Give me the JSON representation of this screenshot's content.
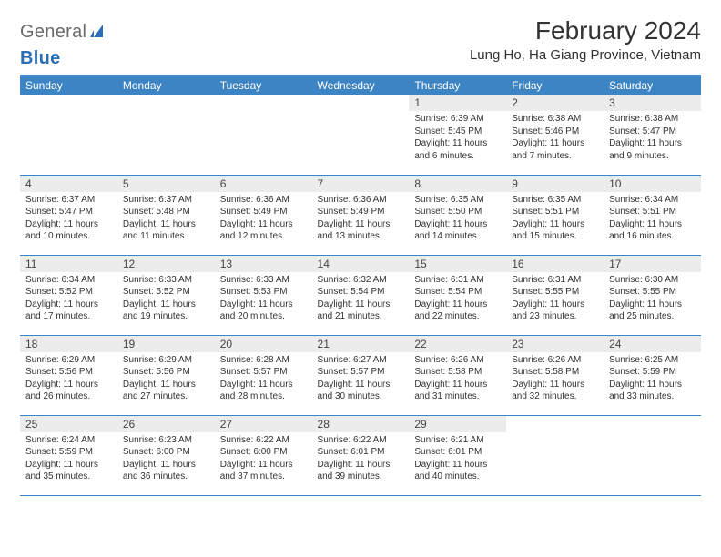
{
  "logo": {
    "general": "General",
    "blue": "Blue"
  },
  "title": "February 2024",
  "location": "Lung Ho, Ha Giang Province, Vietnam",
  "colors": {
    "accent": "#3d84c4",
    "header_bg": "#ececec",
    "text": "#333333",
    "logo_gray": "#6a6a6a",
    "logo_blue": "#2d6fb6"
  },
  "weekdays": [
    "Sunday",
    "Monday",
    "Tuesday",
    "Wednesday",
    "Thursday",
    "Friday",
    "Saturday"
  ],
  "weeks": [
    [
      {
        "empty": true
      },
      {
        "empty": true
      },
      {
        "empty": true
      },
      {
        "empty": true
      },
      {
        "day": "1",
        "sunrise": "Sunrise: 6:39 AM",
        "sunset": "Sunset: 5:45 PM",
        "daylight": "Daylight: 11 hours and 6 minutes."
      },
      {
        "day": "2",
        "sunrise": "Sunrise: 6:38 AM",
        "sunset": "Sunset: 5:46 PM",
        "daylight": "Daylight: 11 hours and 7 minutes."
      },
      {
        "day": "3",
        "sunrise": "Sunrise: 6:38 AM",
        "sunset": "Sunset: 5:47 PM",
        "daylight": "Daylight: 11 hours and 9 minutes."
      }
    ],
    [
      {
        "day": "4",
        "sunrise": "Sunrise: 6:37 AM",
        "sunset": "Sunset: 5:47 PM",
        "daylight": "Daylight: 11 hours and 10 minutes."
      },
      {
        "day": "5",
        "sunrise": "Sunrise: 6:37 AM",
        "sunset": "Sunset: 5:48 PM",
        "daylight": "Daylight: 11 hours and 11 minutes."
      },
      {
        "day": "6",
        "sunrise": "Sunrise: 6:36 AM",
        "sunset": "Sunset: 5:49 PM",
        "daylight": "Daylight: 11 hours and 12 minutes."
      },
      {
        "day": "7",
        "sunrise": "Sunrise: 6:36 AM",
        "sunset": "Sunset: 5:49 PM",
        "daylight": "Daylight: 11 hours and 13 minutes."
      },
      {
        "day": "8",
        "sunrise": "Sunrise: 6:35 AM",
        "sunset": "Sunset: 5:50 PM",
        "daylight": "Daylight: 11 hours and 14 minutes."
      },
      {
        "day": "9",
        "sunrise": "Sunrise: 6:35 AM",
        "sunset": "Sunset: 5:51 PM",
        "daylight": "Daylight: 11 hours and 15 minutes."
      },
      {
        "day": "10",
        "sunrise": "Sunrise: 6:34 AM",
        "sunset": "Sunset: 5:51 PM",
        "daylight": "Daylight: 11 hours and 16 minutes."
      }
    ],
    [
      {
        "day": "11",
        "sunrise": "Sunrise: 6:34 AM",
        "sunset": "Sunset: 5:52 PM",
        "daylight": "Daylight: 11 hours and 17 minutes."
      },
      {
        "day": "12",
        "sunrise": "Sunrise: 6:33 AM",
        "sunset": "Sunset: 5:52 PM",
        "daylight": "Daylight: 11 hours and 19 minutes."
      },
      {
        "day": "13",
        "sunrise": "Sunrise: 6:33 AM",
        "sunset": "Sunset: 5:53 PM",
        "daylight": "Daylight: 11 hours and 20 minutes."
      },
      {
        "day": "14",
        "sunrise": "Sunrise: 6:32 AM",
        "sunset": "Sunset: 5:54 PM",
        "daylight": "Daylight: 11 hours and 21 minutes."
      },
      {
        "day": "15",
        "sunrise": "Sunrise: 6:31 AM",
        "sunset": "Sunset: 5:54 PM",
        "daylight": "Daylight: 11 hours and 22 minutes."
      },
      {
        "day": "16",
        "sunrise": "Sunrise: 6:31 AM",
        "sunset": "Sunset: 5:55 PM",
        "daylight": "Daylight: 11 hours and 23 minutes."
      },
      {
        "day": "17",
        "sunrise": "Sunrise: 6:30 AM",
        "sunset": "Sunset: 5:55 PM",
        "daylight": "Daylight: 11 hours and 25 minutes."
      }
    ],
    [
      {
        "day": "18",
        "sunrise": "Sunrise: 6:29 AM",
        "sunset": "Sunset: 5:56 PM",
        "daylight": "Daylight: 11 hours and 26 minutes."
      },
      {
        "day": "19",
        "sunrise": "Sunrise: 6:29 AM",
        "sunset": "Sunset: 5:56 PM",
        "daylight": "Daylight: 11 hours and 27 minutes."
      },
      {
        "day": "20",
        "sunrise": "Sunrise: 6:28 AM",
        "sunset": "Sunset: 5:57 PM",
        "daylight": "Daylight: 11 hours and 28 minutes."
      },
      {
        "day": "21",
        "sunrise": "Sunrise: 6:27 AM",
        "sunset": "Sunset: 5:57 PM",
        "daylight": "Daylight: 11 hours and 30 minutes."
      },
      {
        "day": "22",
        "sunrise": "Sunrise: 6:26 AM",
        "sunset": "Sunset: 5:58 PM",
        "daylight": "Daylight: 11 hours and 31 minutes."
      },
      {
        "day": "23",
        "sunrise": "Sunrise: 6:26 AM",
        "sunset": "Sunset: 5:58 PM",
        "daylight": "Daylight: 11 hours and 32 minutes."
      },
      {
        "day": "24",
        "sunrise": "Sunrise: 6:25 AM",
        "sunset": "Sunset: 5:59 PM",
        "daylight": "Daylight: 11 hours and 33 minutes."
      }
    ],
    [
      {
        "day": "25",
        "sunrise": "Sunrise: 6:24 AM",
        "sunset": "Sunset: 5:59 PM",
        "daylight": "Daylight: 11 hours and 35 minutes."
      },
      {
        "day": "26",
        "sunrise": "Sunrise: 6:23 AM",
        "sunset": "Sunset: 6:00 PM",
        "daylight": "Daylight: 11 hours and 36 minutes."
      },
      {
        "day": "27",
        "sunrise": "Sunrise: 6:22 AM",
        "sunset": "Sunset: 6:00 PM",
        "daylight": "Daylight: 11 hours and 37 minutes."
      },
      {
        "day": "28",
        "sunrise": "Sunrise: 6:22 AM",
        "sunset": "Sunset: 6:01 PM",
        "daylight": "Daylight: 11 hours and 39 minutes."
      },
      {
        "day": "29",
        "sunrise": "Sunrise: 6:21 AM",
        "sunset": "Sunset: 6:01 PM",
        "daylight": "Daylight: 11 hours and 40 minutes."
      },
      {
        "empty": true
      },
      {
        "empty": true
      }
    ]
  ]
}
